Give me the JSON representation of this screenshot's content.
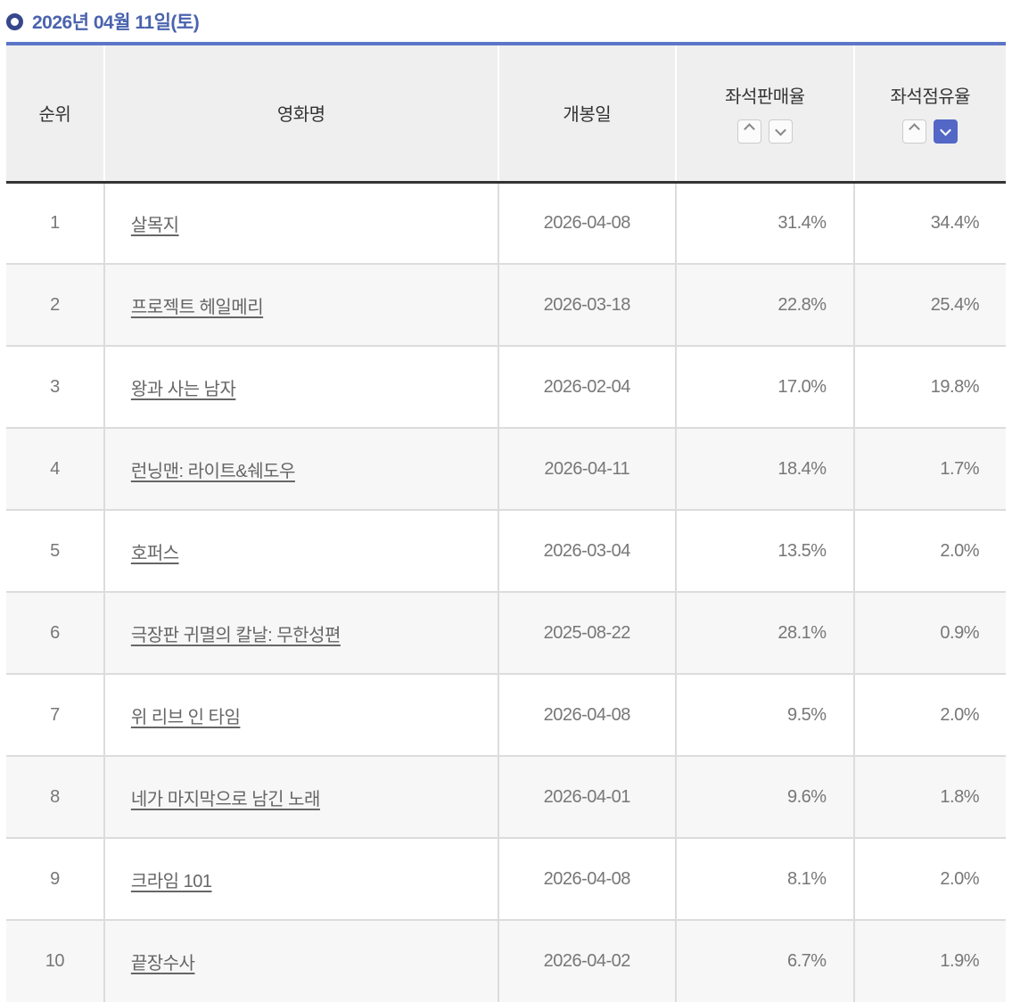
{
  "page": {
    "title": "2026년 04월 11일(토)"
  },
  "table": {
    "headers": {
      "rank": "순위",
      "movie": "영화명",
      "release": "개봉일",
      "seat_sales": "좌석판매율",
      "seat_share": "좌석점유율"
    },
    "sort_state": {
      "seat_sales": "none",
      "seat_share": "desc"
    },
    "rows": [
      {
        "rank": "1",
        "movie": "살목지",
        "release": "2026-04-08",
        "seat_sales": "31.4%",
        "seat_share": "34.4%"
      },
      {
        "rank": "2",
        "movie": "프로젝트 헤일메리",
        "release": "2026-03-18",
        "seat_sales": "22.8%",
        "seat_share": "25.4%"
      },
      {
        "rank": "3",
        "movie": "왕과 사는 남자",
        "release": "2026-02-04",
        "seat_sales": "17.0%",
        "seat_share": "19.8%"
      },
      {
        "rank": "4",
        "movie": "런닝맨: 라이트&쉐도우",
        "release": "2026-04-11",
        "seat_sales": "18.4%",
        "seat_share": "1.7%"
      },
      {
        "rank": "5",
        "movie": "호퍼스",
        "release": "2026-03-04",
        "seat_sales": "13.5%",
        "seat_share": "2.0%"
      },
      {
        "rank": "6",
        "movie": "극장판 귀멸의 칼날: 무한성편",
        "release": "2025-08-22",
        "seat_sales": "28.1%",
        "seat_share": "0.9%"
      },
      {
        "rank": "7",
        "movie": "위 리브 인 타임",
        "release": "2026-04-08",
        "seat_sales": "9.5%",
        "seat_share": "2.0%"
      },
      {
        "rank": "8",
        "movie": "네가 마지막으로 남긴 노래",
        "release": "2026-04-01",
        "seat_sales": "9.6%",
        "seat_share": "1.8%"
      },
      {
        "rank": "9",
        "movie": "크라임 101",
        "release": "2026-04-08",
        "seat_sales": "8.1%",
        "seat_share": "2.0%"
      },
      {
        "rank": "10",
        "movie": "끝장수사",
        "release": "2026-04-02",
        "seat_sales": "6.7%",
        "seat_share": "1.9%"
      }
    ]
  },
  "colors": {
    "title_blue": "#4a63ad",
    "table_top_border": "#5c76c7",
    "active_sort_blue": "#5267c6",
    "header_bg": "#f0efef",
    "row_alt_bg": "#f7f7f7",
    "cell_text": "#777777",
    "header_text": "#333333",
    "grid_line": "#dcdcdc"
  }
}
